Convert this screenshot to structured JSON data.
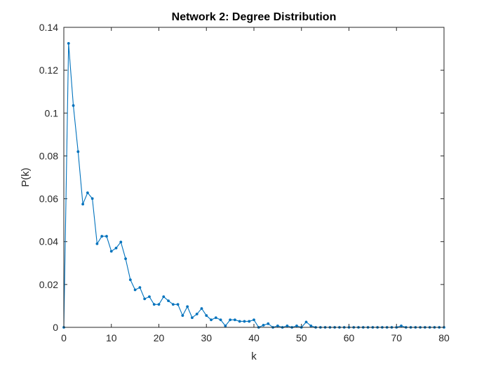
{
  "chart_data": {
    "type": "line",
    "title": "Network 2: Degree Distribution",
    "xlabel": "k",
    "ylabel": "P(k)",
    "xlim": [
      0,
      80
    ],
    "ylim": [
      0,
      0.14
    ],
    "xticks": [
      0,
      10,
      20,
      30,
      40,
      50,
      60,
      70,
      80
    ],
    "yticks": [
      0,
      0.02,
      0.04,
      0.06,
      0.08,
      0.1,
      0.12,
      0.14
    ],
    "xtick_labels": [
      "0",
      "10",
      "20",
      "30",
      "40",
      "50",
      "60",
      "70",
      "80"
    ],
    "ytick_labels": [
      "0",
      "0.02",
      "0.04",
      "0.06",
      "0.08",
      "0.1",
      "0.12",
      "0.14"
    ],
    "grid": false,
    "marker": "dot",
    "color": "#0072BD",
    "series": [
      {
        "x": [
          0,
          1,
          2,
          3,
          4,
          5,
          6,
          7,
          8,
          9,
          10,
          11,
          12,
          13,
          14,
          15,
          16,
          17,
          18,
          19,
          20,
          21,
          22,
          23,
          24,
          25,
          26,
          27,
          28,
          29,
          30,
          31,
          32,
          33,
          34,
          35,
          36,
          37,
          38,
          39,
          40,
          41,
          42,
          43,
          44,
          45,
          46,
          47,
          48,
          49,
          50,
          51,
          52,
          53,
          54,
          55,
          56,
          57,
          58,
          59,
          60,
          61,
          62,
          63,
          64,
          65,
          66,
          67,
          68,
          69,
          70,
          71,
          72,
          73,
          74,
          75,
          76,
          77,
          78,
          79,
          80
        ],
        "values": [
          0,
          0.1325,
          0.1035,
          0.082,
          0.0575,
          0.0628,
          0.0601,
          0.039,
          0.0425,
          0.0425,
          0.0355,
          0.037,
          0.0398,
          0.032,
          0.0222,
          0.0175,
          0.0186,
          0.0133,
          0.0143,
          0.0107,
          0.0107,
          0.0143,
          0.0124,
          0.0107,
          0.0107,
          0.0055,
          0.0097,
          0.0045,
          0.0062,
          0.0088,
          0.0055,
          0.0035,
          0.0045,
          0.0035,
          0.0007,
          0.0035,
          0.0035,
          0.0028,
          0.0028,
          0.0028,
          0.0035,
          0,
          0.001,
          0.0017,
          0,
          0.0007,
          0,
          0.0007,
          0,
          0.0007,
          0,
          0.0025,
          0.0007,
          0,
          0,
          0,
          0,
          0,
          0,
          0,
          0,
          0,
          0,
          0,
          0,
          0,
          0,
          0,
          0,
          0,
          0,
          0.0007,
          0,
          0,
          0,
          0,
          0,
          0,
          0,
          0,
          0
        ]
      }
    ]
  }
}
